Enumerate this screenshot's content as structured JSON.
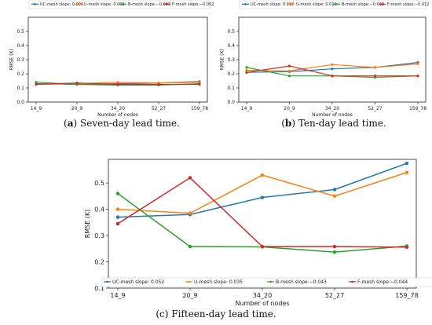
{
  "chart_data": [
    {
      "type": "line",
      "caption_label": "a",
      "caption_text": "Seven-day lead time.",
      "categories": [
        "14_9",
        "20_9",
        "34_20",
        "52_27",
        "159_78"
      ],
      "xlabel": "Number of nodes",
      "ylabel": "RMSE (K)",
      "ylim": [
        0,
        0.6
      ],
      "yticks": [
        "0.0",
        "0.1",
        "0.2",
        "0.3",
        "0.4",
        "0.5"
      ],
      "grid": false,
      "legend_position": "top",
      "series": [
        {
          "name": "UC-mesh slope: 0.006",
          "color": "#1f77b4",
          "values": [
            0.13,
            0.125,
            0.13,
            0.135,
            0.145
          ]
        },
        {
          "name": "U-mesh slope: 0.003",
          "color": "#ff7f0e",
          "values": [
            0.125,
            0.13,
            0.14,
            0.135,
            0.14
          ]
        },
        {
          "name": "B-mesh slope:−0.003",
          "color": "#2ca02c",
          "values": [
            0.14,
            0.125,
            0.12,
            0.12,
            0.13
          ]
        },
        {
          "name": "F-mesh slope:−0.002",
          "color": "#d62728",
          "values": [
            0.125,
            0.135,
            0.125,
            0.125,
            0.125
          ]
        }
      ]
    },
    {
      "type": "line",
      "caption_label": "b",
      "caption_text": "Ten-day lead time.",
      "categories": [
        "14_9",
        "20_9",
        "34_20",
        "52_27",
        "159_78"
      ],
      "xlabel": "Number of nodes",
      "ylabel": "RMSE (K)",
      "ylim": [
        0,
        0.6
      ],
      "yticks": [
        "0.0",
        "0.1",
        "0.2",
        "0.3",
        "0.4",
        "0.5"
      ],
      "grid": false,
      "legend_position": "top",
      "series": [
        {
          "name": "UC-mesh slope: 0.017",
          "color": "#1f77b4",
          "values": [
            0.21,
            0.215,
            0.235,
            0.245,
            0.28
          ]
        },
        {
          "name": "U-mesh slope: 0.010",
          "color": "#ff7f0e",
          "values": [
            0.225,
            0.22,
            0.265,
            0.245,
            0.27
          ]
        },
        {
          "name": "B-mesh slope:−0.013",
          "color": "#2ca02c",
          "values": [
            0.245,
            0.185,
            0.185,
            0.175,
            0.185
          ]
        },
        {
          "name": "F-mesh slope:−0.012",
          "color": "#d62728",
          "values": [
            0.21,
            0.255,
            0.185,
            0.185,
            0.185
          ]
        }
      ]
    },
    {
      "type": "line",
      "caption_label": "c",
      "caption_text": "Fifteen-day lead time.",
      "categories": [
        "14_9",
        "20_9",
        "34_20",
        "52_27",
        "159_78"
      ],
      "xlabel": "Number of nodes",
      "ylabel": "RMSE (K)",
      "ylim": [
        0.1,
        0.59
      ],
      "yticks": [
        "0.1",
        "0.2",
        "0.3",
        "0.4",
        "0.5"
      ],
      "grid": false,
      "legend_position": "bottom",
      "series": [
        {
          "name": "UC-mesh slope: 0.052",
          "color": "#1f77b4",
          "values": [
            0.37,
            0.38,
            0.445,
            0.475,
            0.575
          ]
        },
        {
          "name": "U-mesh slope: 0.035",
          "color": "#ff7f0e",
          "values": [
            0.4,
            0.385,
            0.53,
            0.45,
            0.54
          ]
        },
        {
          "name": "B-mesh slope:−0.043",
          "color": "#2ca02c",
          "values": [
            0.46,
            0.258,
            0.257,
            0.237,
            0.26
          ]
        },
        {
          "name": "F-mesh slope:−0.044",
          "color": "#d62728",
          "values": [
            0.345,
            0.52,
            0.258,
            0.258,
            0.256
          ]
        }
      ]
    }
  ]
}
